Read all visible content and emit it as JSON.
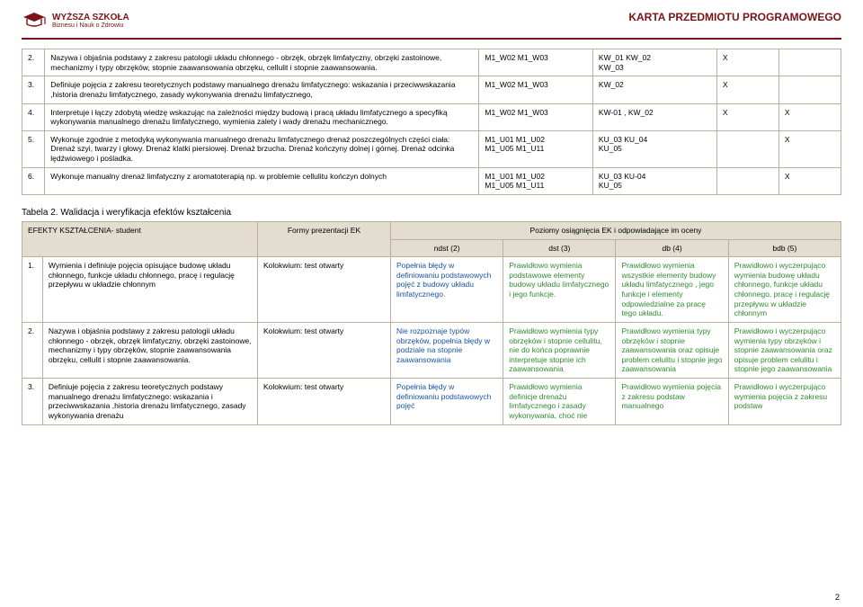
{
  "header": {
    "logo_main": "WYŻSZA SZKOŁA",
    "logo_sub": "Biznesu i Nauk o Zdrowiu",
    "doc_title": "KARTA PRZEDMIOTU PROGRAMOWEGO",
    "logo_color": "#7a1315"
  },
  "table1": {
    "rows": [
      {
        "num": "2.",
        "desc": "Nazywa i objaśnia podstawy z zakresu patologii układu chłonnego - obrzęk, obrzęk limfatyczny, obrzęki zastoinowe,  mechanizmy i typy obrzęków, stopnie zaawansowania obrzęku, cellulit i stopnie zaawansowania.",
        "a": "M1_W02  M1_W03",
        "b": "KW_01     KW_02\nKW_03",
        "c": "X",
        "d": ""
      },
      {
        "num": "3.",
        "desc": "Definiuje pojęcia z zakresu teoretycznych podstawy manualnego drenażu limfatycznego: wskazania i przeciwwskazania ,historia drenażu limfatycznego, zasady wykonywania drenażu limfatycznego,",
        "a": "M1_W02  M1_W03",
        "b": "KW_02",
        "c": "X",
        "d": ""
      },
      {
        "num": "4.",
        "desc": "Interpretuje i łączy zdobytą wiedzę wskazując na  zależności między budową i pracą układu limfatycznego a specyfiką wykonywania manualnego drenażu limfatycznego, wymienia zalety i wady drenażu mechanicznego.",
        "a": "M1_W02  M1_W03",
        "b": "KW-01 , KW_02",
        "c": "X",
        "d": "X"
      },
      {
        "num": "5.",
        "desc": "Wykonuje zgodnie z metodyką wykonywania manualnego drenażu limfatycznego drenaż poszczególnych części ciała: Drenaż szyi, twarzy i głowy. Drenaż klatki piersiowej. Drenaż brzucha. Drenaż kończyny dolnej i górnej. Drenaż odcinka lędźwiowego i pośladka.",
        "a": "M1_U01  M1_U02\nM1_U05  M1_U11",
        "b": "KU_03   KU_04\nKU_05",
        "c": "",
        "d": "X"
      },
      {
        "num": "6.",
        "desc": "Wykonuje manualny drenaż limfatyczny z aromatoterapią np. w problemie cellulitu kończyn dolnych",
        "a": "M1_U01  M1_U02\nM1_U05  M1_U11",
        "b": "KU_03   KU-04\nKU_05",
        "c": "",
        "d": "X"
      }
    ]
  },
  "section_intro": "Tabela 2. Walidacja i weryfikacja efektów kształcenia",
  "table2": {
    "head": {
      "c1": "EFEKTY KSZTAŁCENIA- student",
      "c2": "Formy prezentacji EK",
      "c3": "Poziomy osiągnięcia EK i odpowiadające im oceny",
      "lv1": "ndst (2)",
      "lv2": "dst (3)",
      "lv3": "db (4)",
      "lv4": "bdb (5)"
    },
    "rows": [
      {
        "num": "1.",
        "desc": "Wymienia i definiuje pojęcia opisujące budowę układu chłonnego, funkcje układu chłonnego, pracę i regulację przepływu w układzie chłonnym",
        "formy": "Kolokwium: test otwarty",
        "l1": "Popełnia błędy w definiowaniu podstawowych pojęć z budowy układu limfatycznego.",
        "l2": "Prawidłowo wymienia podstawowe elementy budowy układu limfatycznego i jego funkcje.",
        "l3": "Prawidłowo wymienia wszystkie elementy budowy układu limfatycznego , jego funkcje i elementy odpowiedzialne za pracę tego układu.",
        "l4": "Prawidłowo i wyczerpująco wymienia budowę układu chłonnego, funkcje układu chłonnego, pracę i regulację przepływu w układzie chłonnym"
      },
      {
        "num": "2.",
        "desc": "Nazywa i objaśnia podstawy z zakresu patologii układu chłonnego - obrzęk, obrzęk limfatyczny, obrzęki zastoinowe,  mechanizmy i typy obrzęków, stopnie zaawansowania obrzęku, cellulit i stopnie zaawansowania.",
        "formy": "Kolokwium: test otwarty",
        "l1": "Nie rozpoznaje typów obrzęków, popełnia błędy w podziale na stopnie zaawansowania",
        "l2": "Prawidłowo wymienia typy obrzęków i stopnie cellulitu, nie do końca poprawnie interpretuje stopnie ich zaawansowania",
        "l3": "Prawidłowo wymienia typy obrzęków i stopnie zaawansowania oraz opisuje problem celulitu i stopnie jego zaawansowania",
        "l4": "Prawidłowo i wyczerpująco wymienia typy obrzęków i stopnie zaawansowania oraz opisuje problem celulitu i stopnie jego zaawansowania"
      },
      {
        "num": "3.",
        "desc": "Definiuje pojęcia z zakresu teoretycznych podstawy manualnego drenażu limfatycznego: wskazania i przeciwwskazania ,historia drenażu limfatycznego, zasady wykonywania drenażu",
        "formy": "Kolokwium: test otwarty",
        "l1": "Popełnia błędy w definiowaniu podstawowych pojęć",
        "l2": "Prawidłowo wymienia definicje drenażu limfatycznego i zasady wykonywania, choć nie",
        "l3": "Prawidłowo wymienia pojęcia z zakresu podstaw manualnego",
        "l4": "Prawidłowo i wyczerpująco wymienia pojęcia z zakresu podstaw"
      }
    ]
  },
  "page_number": "2",
  "colors": {
    "border": "#b9b19d",
    "head_bg": "#e3ddd0",
    "blue": "#1a52a5",
    "green": "#2e8b2e",
    "brand": "#7a1315"
  }
}
